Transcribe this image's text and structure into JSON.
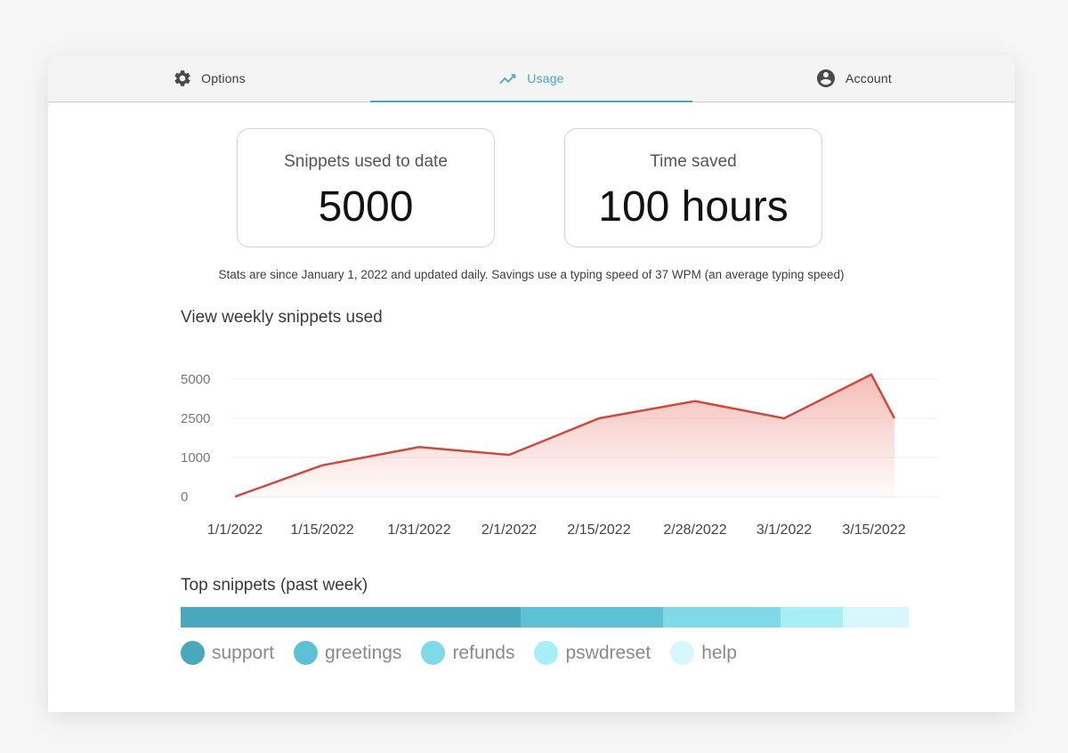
{
  "tabs": [
    {
      "label": "Options",
      "icon": "gear-icon"
    },
    {
      "label": "Usage",
      "icon": "trending-line-icon"
    },
    {
      "label": "Account",
      "icon": "account-circle-icon"
    }
  ],
  "stats": {
    "snippets": {
      "label": "Snippets used to date",
      "value": "5000"
    },
    "time_saved": {
      "label": "Time saved",
      "value": "100 hours"
    }
  },
  "note": "Stats are since January 1, 2022 and updated daily. Savings use a typing speed of 37 WPM (an average typing speed)",
  "chart_title": "View weekly snippets used",
  "top_title": "Top snippets (past week)",
  "colors": {
    "accent": "#4aa6c2",
    "line": "#cc4b3f",
    "fill": "#f4b9b3"
  },
  "chart_data": {
    "type": "area",
    "title": "",
    "xlabel": "",
    "ylabel": "",
    "y_ticks": [
      "5000",
      "2500",
      "1000",
      "0"
    ],
    "x_labels": [
      "1/1/2022",
      "1/15/2022",
      "1/31/2022",
      "2/1/2022",
      "2/15/2022",
      "2/28/2022",
      "3/1/2022",
      "3/15/2022"
    ],
    "points": [
      {
        "x": "1/1/2022",
        "y": 0
      },
      {
        "x": "1/15/2022",
        "y": 800
      },
      {
        "x": "1/31/2022",
        "y": 1400
      },
      {
        "x": "2/1/2022",
        "y": 1100
      },
      {
        "x": "2/15/2022",
        "y": 2500
      },
      {
        "x": "2/28/2022",
        "y": 3600
      },
      {
        "x": "3/1/2022",
        "y": 2500
      },
      {
        "x": "3/15/2022",
        "y": 5300
      },
      {
        "x": "3/15/2022+",
        "y": 2500
      }
    ],
    "grid": true
  },
  "top_snippets": [
    {
      "name": "support",
      "share": 0.467,
      "color": "#4aa8bd"
    },
    {
      "name": "greetings",
      "share": 0.196,
      "color": "#5ec0d3"
    },
    {
      "name": "refunds",
      "share": 0.161,
      "color": "#7fd9e6"
    },
    {
      "name": "pswdreset",
      "share": 0.086,
      "color": "#a8eef7"
    },
    {
      "name": "help",
      "share": 0.09,
      "color": "#d6f7fb"
    }
  ]
}
